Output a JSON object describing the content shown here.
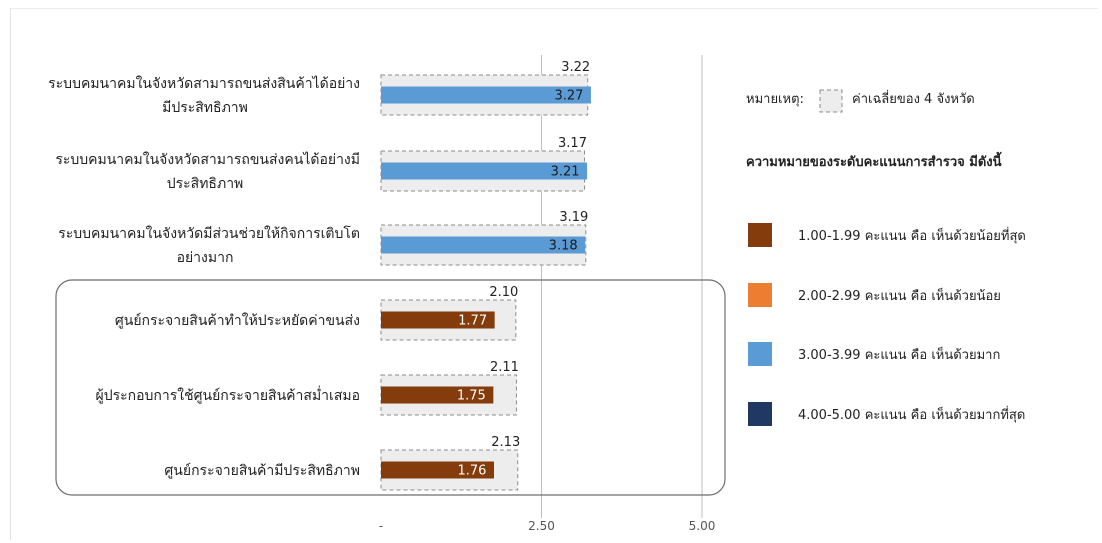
{
  "chart_data": {
    "type": "bar",
    "orientation": "horizontal",
    "categories": [
      [
        "ระบบคมนาคมในจังหวัดสามารถขนส่งสินค้าได้อย่าง",
        "มีประสิทธิภาพ"
      ],
      [
        "ระบบคมนาคมในจังหวัดสามารถขนส่งคนได้อย่างมี",
        "ประสิทธิภาพ"
      ],
      [
        "ระบบคมนาคมในจังหวัดมีส่วนช่วยให้กิจการเติบโต",
        "อย่างมาก"
      ],
      [
        "ศูนย์กระจายสินค้าทำให้ประหยัดค่าขนส่ง"
      ],
      [
        "ผู้ประกอบการใช้ศูนย์กระจายสินค้าสม่ำเสมอ"
      ],
      [
        "ศูนย์กระจายสินค้ามีประสิทธิภาพ"
      ]
    ],
    "series": [
      {
        "name": "",
        "values": [
          3.27,
          3.21,
          3.18,
          1.77,
          1.75,
          1.76
        ]
      },
      {
        "name": "ค่าเฉลี่ยของ 4 จังหวัด",
        "values": [
          3.22,
          3.17,
          3.19,
          2.1,
          2.11,
          2.13
        ],
        "style": "dashed-box"
      }
    ],
    "value_labels": [
      "3.27",
      "3.21",
      "3.18",
      "1.77",
      "1.75",
      "1.76"
    ],
    "avg_labels": [
      "3.22",
      "3.17",
      "3.19",
      "2.10",
      "2.11",
      "2.13"
    ],
    "xlim": [
      0,
      5
    ],
    "x_ticks": [
      {
        "value": 0,
        "label": "-"
      },
      {
        "value": 2.5,
        "label": "2.50"
      },
      {
        "value": 5,
        "label": "5.00"
      }
    ],
    "gridlines_at": [
      2.5,
      5
    ],
    "highlight_group": [
      3,
      4,
      5
    ],
    "xlabel": "",
    "ylabel": "",
    "title": ""
  },
  "colors": {
    "level_1": "#843c0c",
    "level_2": "#ed7d31",
    "level_3": "#5b9bd5",
    "level_4": "#1f3864",
    "avg_box_fill": "#ededed",
    "avg_box_stroke": "#8c8c8c",
    "grid": "#bfbfbf"
  },
  "legend": {
    "note_label": "หมายเหตุ:",
    "note_text": "ค่าเฉลี่ยของ 4 จังหวัด",
    "heading": "ความหมายของระดับคะแนนการสำรวจ มีดังนี้",
    "items": [
      {
        "text": "1.00-1.99 คะแนน  คือ เห็นด้วยน้อยที่สุด",
        "color_key": "level_1"
      },
      {
        "text": "2.00-2.99  คะแนน  คือ เห็นด้วยน้อย",
        "color_key": "level_2"
      },
      {
        "text": "3.00-3.99 คะแนน  คือ เห็นด้วยมาก",
        "color_key": "level_3"
      },
      {
        "text": "4.00-5.00 คะแนน  คือ เห็นด้วยมากที่สุด",
        "color_key": "level_4"
      }
    ]
  }
}
